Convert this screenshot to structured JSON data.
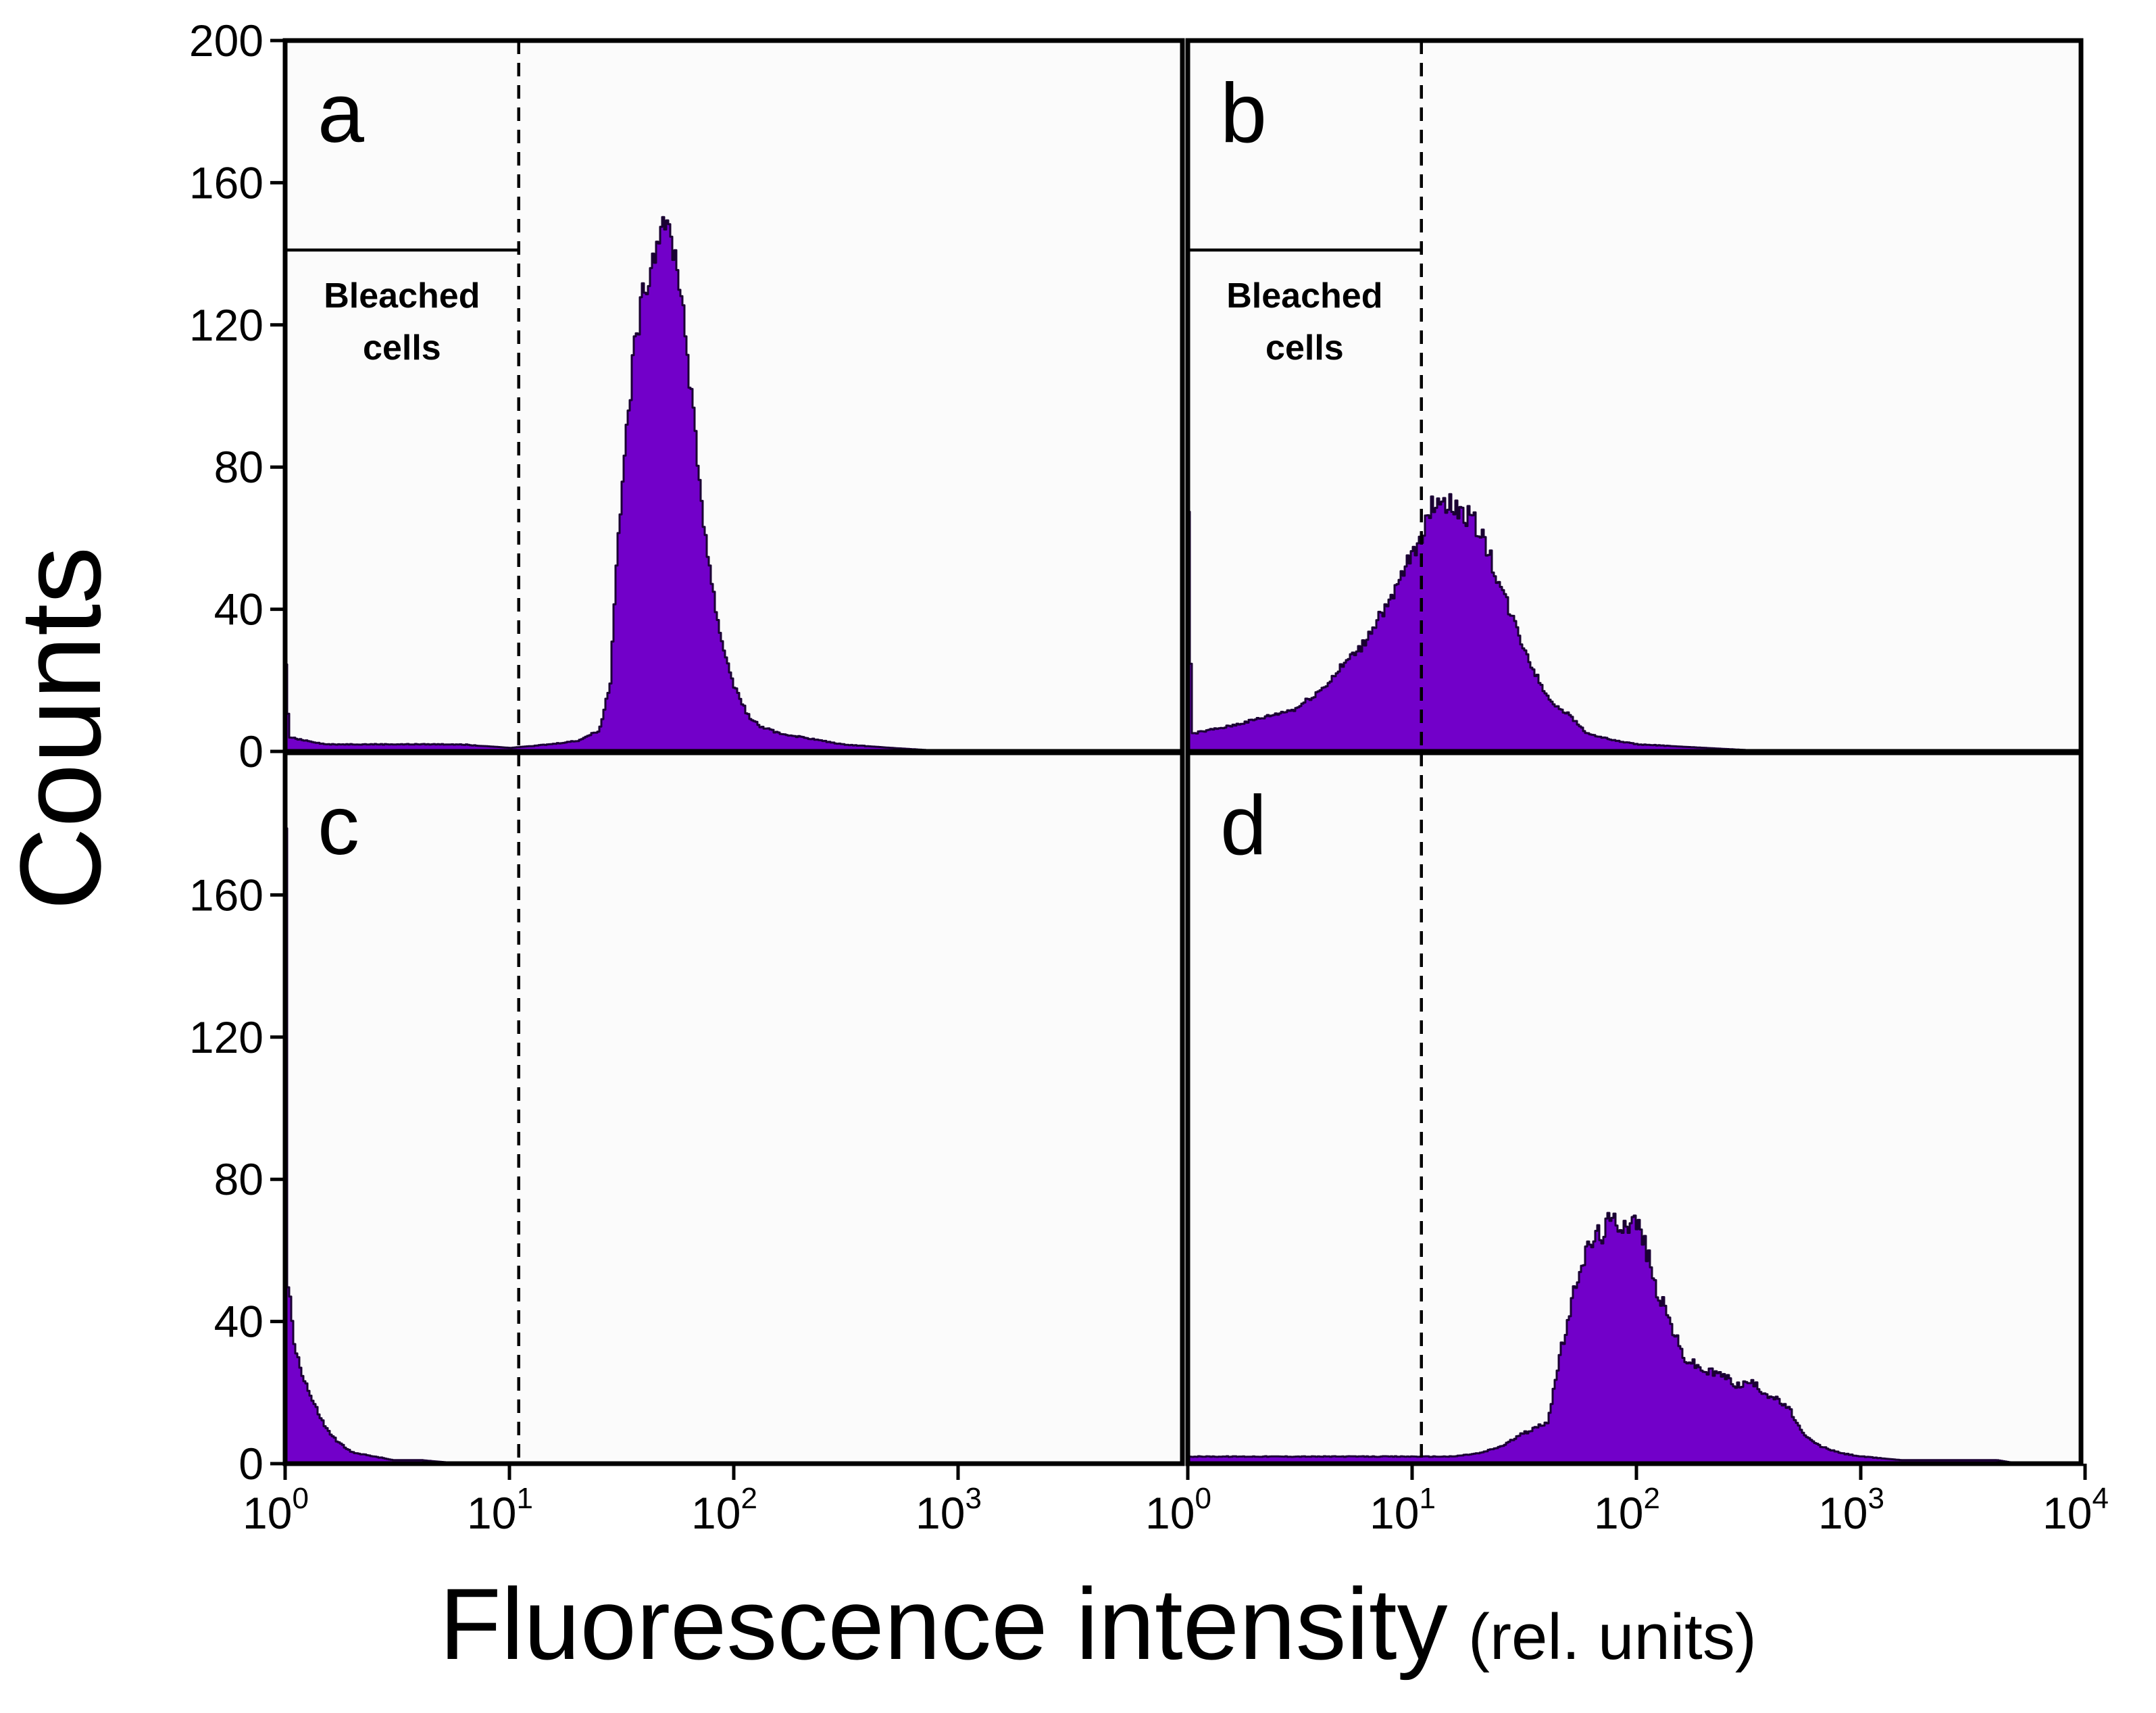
{
  "chart_data": {
    "type": "histogram-grid",
    "ylabel": "Counts",
    "xlabel_main": "Fluorescence intensity",
    "xlabel_units": "(rel. units)",
    "y_axis": {
      "range": [
        0,
        200
      ],
      "ticks_top_row": [
        "200",
        "160",
        "120",
        "80",
        "40",
        "0"
      ],
      "ticks_bottom_row": [
        "160",
        "120",
        "80",
        "40",
        "0"
      ]
    },
    "x_axis": {
      "scale": "log10",
      "range_left_panels": [
        1,
        10000
      ],
      "range_right_panels": [
        1,
        10000
      ],
      "tick_bases": [
        "10",
        "10",
        "10",
        "10",
        "10",
        "10",
        "10",
        "10",
        "10"
      ],
      "tick_exponents": [
        "0",
        "1",
        "2",
        "3",
        "0",
        "1",
        "2",
        "3",
        "4"
      ]
    },
    "gate": {
      "threshold": 11,
      "label_line1": "Bleached",
      "label_line2": "cells"
    },
    "bar_color": "#7200c9",
    "panels": [
      {
        "id": "a",
        "letter": "a",
        "show_gate_label": true,
        "points": [
          [
            1.0,
            25
          ],
          [
            1.03,
            4
          ],
          [
            1.5,
            2
          ],
          [
            3,
            2
          ],
          [
            6,
            2
          ],
          [
            10,
            1
          ],
          [
            15,
            2
          ],
          [
            20,
            3
          ],
          [
            25,
            6
          ],
          [
            28,
            20
          ],
          [
            30,
            60
          ],
          [
            33,
            90
          ],
          [
            36,
            115
          ],
          [
            39,
            128
          ],
          [
            42,
            136
          ],
          [
            45,
            143
          ],
          [
            47,
            148
          ],
          [
            48,
            153
          ],
          [
            50,
            148
          ],
          [
            53,
            142
          ],
          [
            56,
            135
          ],
          [
            60,
            120
          ],
          [
            65,
            95
          ],
          [
            70,
            75
          ],
          [
            75,
            58
          ],
          [
            80,
            45
          ],
          [
            85,
            35
          ],
          [
            90,
            28
          ],
          [
            100,
            18
          ],
          [
            115,
            10
          ],
          [
            130,
            7
          ],
          [
            160,
            5
          ],
          [
            200,
            4
          ],
          [
            300,
            2
          ],
          [
            500,
            1
          ],
          [
            900,
            0
          ]
        ]
      },
      {
        "id": "b",
        "letter": "b",
        "show_gate_label": true,
        "points": [
          [
            1.0,
            70
          ],
          [
            1.03,
            5
          ],
          [
            1.5,
            7
          ],
          [
            2,
            9
          ],
          [
            3,
            12
          ],
          [
            4,
            18
          ],
          [
            5,
            25
          ],
          [
            6,
            30
          ],
          [
            7,
            38
          ],
          [
            8,
            42
          ],
          [
            9,
            50
          ],
          [
            10,
            56
          ],
          [
            11,
            62
          ],
          [
            12,
            68
          ],
          [
            13,
            72
          ],
          [
            14,
            70
          ],
          [
            16,
            68
          ],
          [
            18,
            66
          ],
          [
            20,
            62
          ],
          [
            22,
            55
          ],
          [
            25,
            45
          ],
          [
            30,
            32
          ],
          [
            35,
            22
          ],
          [
            40,
            15
          ],
          [
            50,
            10
          ],
          [
            60,
            5
          ],
          [
            80,
            3
          ],
          [
            100,
            2
          ],
          [
            200,
            1
          ],
          [
            400,
            0
          ]
        ]
      },
      {
        "id": "c",
        "letter": "c",
        "show_gate_label": false,
        "points": [
          [
            1.0,
            175
          ],
          [
            1.02,
            50
          ],
          [
            1.05,
            44
          ],
          [
            1.1,
            32
          ],
          [
            1.2,
            24
          ],
          [
            1.3,
            18
          ],
          [
            1.5,
            10
          ],
          [
            1.7,
            6
          ],
          [
            2,
            3
          ],
          [
            2.5,
            2
          ],
          [
            3,
            1
          ],
          [
            4,
            1
          ],
          [
            6,
            0
          ]
        ]
      },
      {
        "id": "d",
        "letter": "d",
        "show_gate_label": false,
        "points": [
          [
            1.0,
            2
          ],
          [
            2,
            2
          ],
          [
            5,
            2
          ],
          [
            10,
            2
          ],
          [
            15,
            2
          ],
          [
            20,
            3
          ],
          [
            25,
            5
          ],
          [
            30,
            8
          ],
          [
            35,
            10
          ],
          [
            40,
            12
          ],
          [
            45,
            30
          ],
          [
            50,
            42
          ],
          [
            55,
            55
          ],
          [
            60,
            60
          ],
          [
            65,
            64
          ],
          [
            70,
            65
          ],
          [
            75,
            68
          ],
          [
            80,
            68
          ],
          [
            90,
            68
          ],
          [
            100,
            68
          ],
          [
            110,
            60
          ],
          [
            120,
            50
          ],
          [
            140,
            40
          ],
          [
            160,
            30
          ],
          [
            200,
            26
          ],
          [
            240,
            25
          ],
          [
            280,
            22
          ],
          [
            320,
            23
          ],
          [
            370,
            20
          ],
          [
            420,
            18
          ],
          [
            480,
            15
          ],
          [
            550,
            8
          ],
          [
            650,
            5
          ],
          [
            800,
            3
          ],
          [
            1000,
            2
          ],
          [
            1500,
            1
          ],
          [
            2000,
            1
          ],
          [
            3000,
            1
          ],
          [
            4000,
            1
          ],
          [
            5000,
            0
          ]
        ]
      }
    ]
  }
}
